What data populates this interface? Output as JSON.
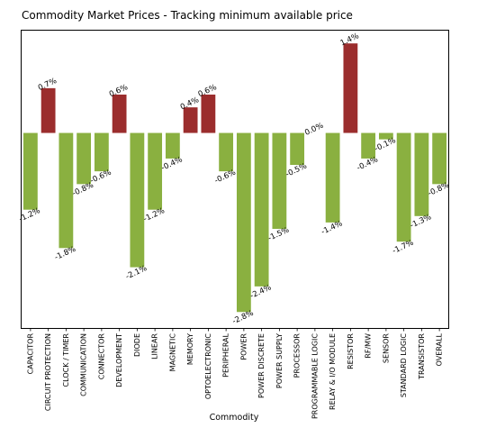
{
  "chart_data": {
    "type": "bar",
    "title": "Commodity Market Prices - Tracking minimum available price",
    "xlabel": "Commodity",
    "ylabel": "",
    "ylim": [
      -3.05,
      1.6
    ],
    "grid": false,
    "categories": [
      "CAPACITOR",
      "CIRCUIT PROTECTION",
      "CLOCK / TIMER",
      "COMMUNICATION",
      "CONNECTOR",
      "DEVELOPMENT",
      "DIODE",
      "LINEAR",
      "MAGNETIC",
      "MEMORY",
      "OPTOELECTRONIC",
      "PERIPHERAL",
      "POWER",
      "POWER DISCRETE",
      "POWER SUPPLY",
      "PROCESSOR",
      "PROGRAMMABLE LOGIC",
      "RELAY & I/O MODULE",
      "RESISTOR",
      "RF/MW",
      "SENSOR",
      "STANDARD LOGIC",
      "TRANSISTOR",
      "OVERALL"
    ],
    "values": [
      -1.2,
      0.7,
      -1.8,
      -0.8,
      -0.6,
      0.6,
      -2.1,
      -1.2,
      -0.4,
      0.4,
      0.6,
      -0.6,
      -2.8,
      -2.4,
      -1.5,
      -0.5,
      0.0,
      -1.4,
      1.4,
      -0.4,
      -0.1,
      -1.7,
      -1.3,
      -0.8
    ],
    "labels": [
      "-1.2%",
      "0.7%",
      "-1.8%",
      "-0.8%",
      "-0.6%",
      "0.6%",
      "-2.1%",
      "-1.2%",
      "-0.4%",
      "0.4%",
      "0.6%",
      "-0.6%",
      "-2.8%",
      "-2.4%",
      "-1.5%",
      "-0.5%",
      "0.0%",
      "-1.4%",
      "1.4%",
      "-0.4%",
      "-0.1%",
      "-1.7%",
      "-1.3%",
      "-0.8%"
    ],
    "colors": {
      "positive": "#9b2d2d",
      "negative": "#8ab040"
    }
  }
}
